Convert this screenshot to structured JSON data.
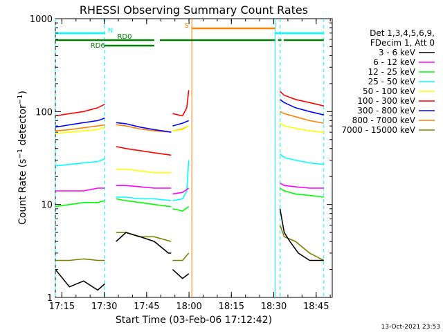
{
  "chart_data": {
    "type": "line",
    "title": "RHESSI Observing Summary Count Rates",
    "xlabel": "Start Time (03-Feb-06 17:12:42)",
    "ylabel": "Count Rate (s-1 detector-1)",
    "ylabel_parts": {
      "main": "Count Rate (s",
      "exp1": "−1",
      "mid": " detector",
      "exp2": "−1",
      "end": ")"
    },
    "xlim_min": [
      0,
      98
    ],
    "xticks": [
      {
        "min": 2.3,
        "label": "17:15"
      },
      {
        "min": 17.3,
        "label": "17:30"
      },
      {
        "min": 32.3,
        "label": "17:45"
      },
      {
        "min": 47.3,
        "label": "18:00"
      },
      {
        "min": 62.3,
        "label": "18:15"
      },
      {
        "min": 77.3,
        "label": "18:30"
      },
      {
        "min": 92.3,
        "label": "18:45"
      }
    ],
    "y_log": true,
    "ylim": [
      1,
      1000
    ],
    "yticks": [
      {
        "v": 1,
        "label": "1"
      },
      {
        "v": 10,
        "label": "10"
      },
      {
        "v": 100,
        "label": "100"
      },
      {
        "v": 1000,
        "label": "1000"
      }
    ],
    "legend_header": [
      "Det 1,3,4,5,6,9,",
      "FDecim 1, Att 0"
    ],
    "series": [
      {
        "name": "3 - 6 keV",
        "color": "#000000",
        "segments": [
          {
            "x": [
              0,
              5,
              10,
              15,
              17.5
            ],
            "y": [
              2,
              1.3,
              1.5,
              1.2,
              1.4
            ]
          },
          {
            "x": [
              21.5,
              25,
              30,
              35,
              40,
              41
            ],
            "y": [
              4,
              5,
              4.5,
              4,
              3,
              3
            ]
          },
          {
            "x": [
              41.5,
              45,
              47.2
            ],
            "y": [
              2,
              1.6,
              1.8
            ]
          },
          {
            "x": [
              79.5,
              81,
              83,
              86,
              90,
              95
            ],
            "y": [
              9,
              5,
              4,
              3,
              2.5,
              2.5
            ]
          }
        ]
      },
      {
        "name": "6 - 12 keV",
        "color": "#ff00ff",
        "segments": [
          {
            "x": [
              0,
              5,
              10,
              15,
              17.5
            ],
            "y": [
              14,
              14,
              14,
              15,
              15
            ]
          },
          {
            "x": [
              21.5,
              25,
              30,
              35,
              41
            ],
            "y": [
              16,
              16,
              15.5,
              15,
              15
            ]
          },
          {
            "x": [
              41.5,
              45,
              47.2
            ],
            "y": [
              13,
              13.5,
              15
            ]
          },
          {
            "x": [
              79.5,
              81,
              85,
              90,
              95
            ],
            "y": [
              17,
              16,
              15.5,
              15,
              15
            ]
          }
        ]
      },
      {
        "name": "12 - 25 keV",
        "color": "#00ff00",
        "segments": [
          {
            "x": [
              0,
              5,
              10,
              15,
              17.5
            ],
            "y": [
              9.5,
              10,
              10.5,
              10.5,
              11
            ]
          },
          {
            "x": [
              21.5,
              25,
              30,
              35,
              41
            ],
            "y": [
              11.5,
              11,
              10.5,
              10,
              9.5
            ]
          },
          {
            "x": [
              41.5,
              45,
              47.2
            ],
            "y": [
              9,
              8.5,
              9.5
            ]
          },
          {
            "x": [
              79.5,
              81,
              85,
              90,
              95
            ],
            "y": [
              15,
              14,
              13,
              12.5,
              12
            ]
          }
        ]
      },
      {
        "name": "25 - 50 keV",
        "color": "#00ffff",
        "segments": [
          {
            "x": [
              0,
              5,
              10,
              15,
              17.5
            ],
            "y": [
              26,
              27,
              28,
              29,
              31
            ]
          },
          {
            "x": [
              21.5,
              25,
              30,
              35,
              41
            ],
            "y": [
              12,
              12,
              11.5,
              11.5,
              11
            ]
          },
          {
            "x": [
              41.5,
              45,
              46.5,
              47.2
            ],
            "y": [
              11,
              11.5,
              14,
              30
            ]
          },
          {
            "x": [
              79.5,
              81,
              85,
              90,
              95
            ],
            "y": [
              35,
              32,
              30,
              28,
              27
            ]
          }
        ]
      },
      {
        "name": "50 - 100 keV",
        "color": "#ffff00",
        "segments": [
          {
            "x": [
              0,
              5,
              10,
              15,
              17.5
            ],
            "y": [
              58,
              60,
              62,
              64,
              68
            ]
          },
          {
            "x": [
              21.5,
              25,
              30,
              35,
              41
            ],
            "y": [
              24,
              24,
              23,
              22,
              22
            ]
          },
          {
            "x": [
              41.5,
              45,
              47.2
            ],
            "y": [
              62,
              64,
              70
            ]
          },
          {
            "x": [
              79.5,
              81,
              85,
              90,
              95
            ],
            "y": [
              75,
              70,
              66,
              62,
              60
            ]
          }
        ]
      },
      {
        "name": "100 - 300 keV",
        "color": "#ff0000",
        "segments": [
          {
            "x": [
              0,
              5,
              10,
              15,
              17.5
            ],
            "y": [
              90,
              95,
              100,
              110,
              120
            ]
          },
          {
            "x": [
              21.5,
              25,
              30,
              35,
              41
            ],
            "y": [
              42,
              40,
              38,
              36,
              34
            ]
          },
          {
            "x": [
              41.5,
              45,
              46.5,
              47.2
            ],
            "y": [
              95,
              90,
              110,
              170
            ]
          },
          {
            "x": [
              79.5,
              81,
              85,
              90,
              95
            ],
            "y": [
              165,
              150,
              135,
              125,
              115
            ]
          }
        ]
      },
      {
        "name": "300 - 800 keV",
        "color": "#0000ff",
        "segments": [
          {
            "x": [
              0,
              5,
              10,
              15,
              17.5
            ],
            "y": [
              68,
              72,
              76,
              80,
              85
            ]
          },
          {
            "x": [
              21.5,
              25,
              30,
              35,
              41
            ],
            "y": [
              76,
              74,
              68,
              64,
              60
            ]
          },
          {
            "x": [
              41.5,
              45,
              47.2
            ],
            "y": [
              70,
              75,
              80
            ]
          },
          {
            "x": [
              79.5,
              81,
              85,
              90,
              95
            ],
            "y": [
              135,
              125,
              110,
              100,
              92
            ]
          }
        ]
      },
      {
        "name": "800 - 7000 keV",
        "color": "#ff8000",
        "segments": [
          {
            "x": [
              0,
              5,
              10,
              15,
              17.5
            ],
            "y": [
              62,
              64,
              67,
              70,
              72
            ]
          },
          {
            "x": [
              21.5,
              25,
              30,
              35,
              41
            ],
            "y": [
              72,
              70,
              65,
              62,
              60
            ]
          },
          {
            "x": [
              41.5,
              45,
              47.2
            ],
            "y": [
              62,
              65,
              70
            ]
          },
          {
            "x": [
              79.5,
              81,
              85,
              90,
              95
            ],
            "y": [
              100,
              95,
              88,
              80,
              75
            ]
          }
        ]
      },
      {
        "name": "7000 - 15000 keV",
        "color": "#808000",
        "segments": [
          {
            "x": [
              0,
              5,
              10,
              15,
              17.5
            ],
            "y": [
              2.5,
              2.5,
              2.6,
              2.5,
              2.5
            ]
          },
          {
            "x": [
              21.5,
              25,
              30,
              35,
              41
            ],
            "y": [
              5,
              5,
              4.5,
              4.5,
              4
            ]
          },
          {
            "x": [
              41.5,
              45,
              47.2
            ],
            "y": [
              2.5,
              2.5,
              3
            ]
          },
          {
            "x": [
              79.5,
              81,
              85,
              90,
              95
            ],
            "y": [
              6,
              4.5,
              4,
              3,
              2.5
            ]
          }
        ]
      }
    ],
    "flag_bars": [
      {
        "label": "N",
        "color": "#00ffff",
        "level": 1,
        "segments": [
          [
            0,
            17.5
          ],
          [
            77.8,
            95
          ]
        ],
        "label_at_min": 19.5
      },
      {
        "label": "S",
        "color": "#ff8000",
        "level": 2,
        "segments": [
          [
            48.3,
            77.8
          ]
        ],
        "label_at_min": 46.5
      },
      {
        "label": "RD0",
        "color": "#008000",
        "level": 3,
        "segments": [
          [
            0,
            35
          ],
          [
            37,
            77.8
          ],
          [
            78.8,
            80
          ],
          [
            80.8,
            95
          ]
        ],
        "label_at_min": 24.5
      },
      {
        "label": "RD6",
        "color": "#008000",
        "level": 4,
        "segments": [
          [
            17.5,
            35
          ]
        ],
        "label_at_min": 15
      }
    ],
    "vertical_markers": [
      {
        "min": 0,
        "color": "#00ffff",
        "style": "dash"
      },
      {
        "min": 17.5,
        "color": "#00ffff",
        "style": "dash"
      },
      {
        "min": 48.3,
        "color": "#ff8000",
        "style": "solid"
      },
      {
        "min": 77.8,
        "color": "#00ffff",
        "style": "solid"
      },
      {
        "min": 79.5,
        "color": "#00ffff",
        "style": "dash"
      },
      {
        "min": 95,
        "color": "#00ffff",
        "style": "dash"
      }
    ]
  },
  "footer_timestamp": "13-Oct-2021 23:53"
}
